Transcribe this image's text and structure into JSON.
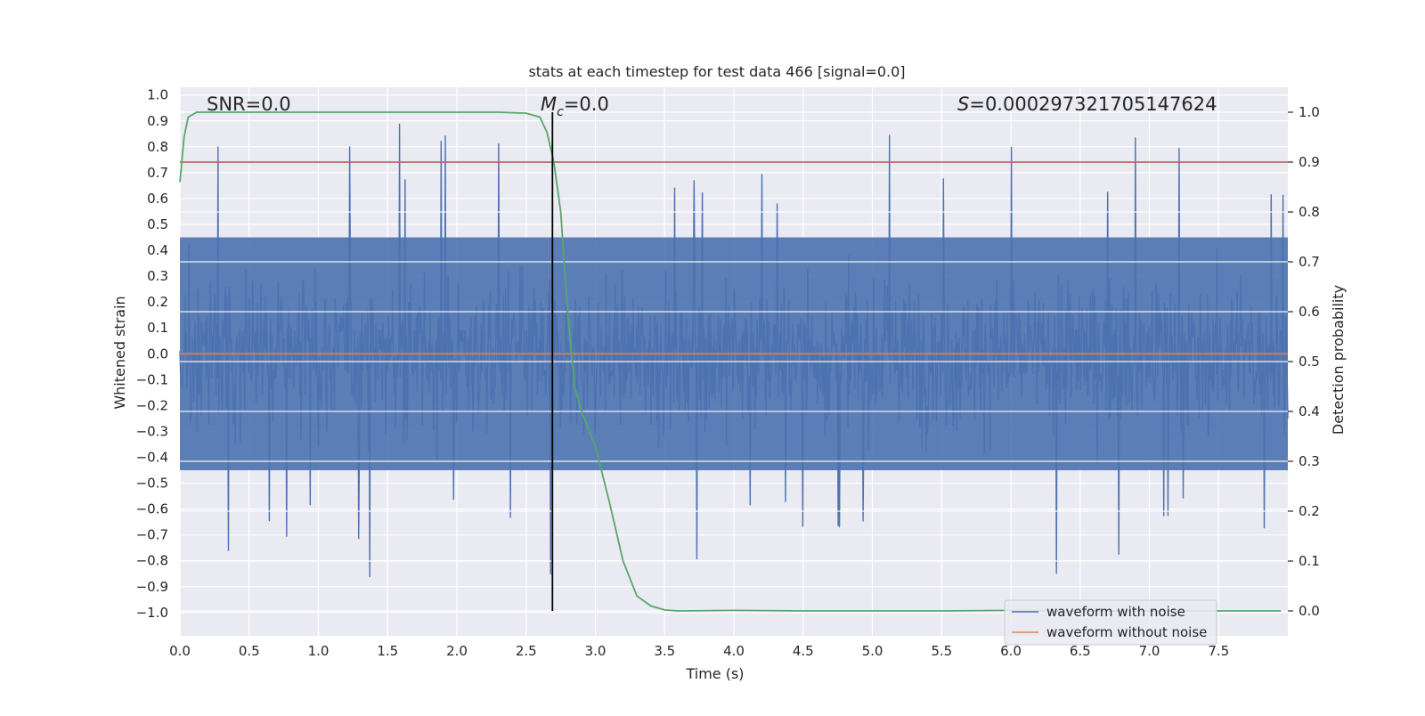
{
  "chart_data": {
    "type": "line",
    "title": "stats at each timestep for test data 466 [signal=0.0]",
    "xlabel": "Time (s)",
    "ylabel_left": "Whitened strain",
    "ylabel_right": "Detection probability",
    "xlim": [
      0.0,
      8.0
    ],
    "ylim_left": [
      -1.09,
      1.03
    ],
    "ylim_right": [
      -0.05,
      1.05
    ],
    "x_ticks": [
      0.0,
      0.5,
      1.0,
      1.5,
      2.0,
      2.5,
      3.0,
      3.5,
      4.0,
      4.5,
      5.0,
      5.5,
      6.0,
      6.5,
      7.0,
      7.5
    ],
    "x_tick_labels": [
      "0.0",
      "0.5",
      "1.0",
      "1.5",
      "2.0",
      "2.5",
      "3.0",
      "3.5",
      "4.0",
      "4.5",
      "5.0",
      "5.5",
      "6.0",
      "6.5",
      "7.0",
      "7.5"
    ],
    "y_left_ticks": [
      1.0,
      0.9,
      0.8,
      0.7,
      0.6,
      0.5,
      0.4,
      0.3,
      0.2,
      0.1,
      0.0,
      -0.1,
      -0.2,
      -0.3,
      -0.4,
      -0.5,
      -0.6,
      -0.7,
      -0.8,
      -0.9,
      -1.0
    ],
    "y_left_tick_labels": [
      "1.0",
      "0.9",
      "0.8",
      "0.7",
      "0.6",
      "0.5",
      "0.4",
      "0.3",
      "0.2",
      "0.1",
      "0.0",
      "−0.1",
      "−0.2",
      "−0.3",
      "−0.4",
      "−0.5",
      "−0.6",
      "−0.7",
      "−0.8",
      "−0.9",
      "−1.0"
    ],
    "y_right_ticks": [
      1.0,
      0.9,
      0.8,
      0.7,
      0.6,
      0.5,
      0.4,
      0.3,
      0.2,
      0.1,
      0.0
    ],
    "y_right_tick_labels": [
      "1.0",
      "0.9",
      "0.8",
      "0.7",
      "0.6",
      "0.5",
      "0.4",
      "0.3",
      "0.2",
      "0.1",
      "0.0"
    ],
    "grid": true,
    "legend_placement": "lower-right",
    "series": [
      {
        "name": "waveform with noise",
        "axis": "left",
        "color": "#4c72b0",
        "description_kind": "dense noise envelope",
        "typical_range": [
          -0.45,
          0.45
        ],
        "extreme_range": [
          -1.0,
          0.93
        ]
      },
      {
        "name": "waveform without noise",
        "axis": "left",
        "color": "#dd8452",
        "x": [
          0.0,
          8.0
        ],
        "y": [
          0.0,
          0.0
        ]
      },
      {
        "axis": "right",
        "color": "#55a868",
        "x": [
          0.0,
          0.03,
          0.06,
          0.12,
          0.5,
          1.0,
          1.5,
          2.0,
          2.3,
          2.5,
          2.6,
          2.65,
          2.7,
          2.75,
          2.8,
          2.85,
          2.9,
          3.0,
          3.1,
          3.2,
          3.3,
          3.4,
          3.5,
          3.6,
          4.0,
          4.5,
          5.0,
          5.5,
          6.0,
          6.5,
          7.0,
          7.5,
          7.95
        ],
        "y": [
          0.86,
          0.95,
          0.99,
          1.0,
          1.0,
          1.0,
          1.0,
          1.0,
          1.0,
          0.998,
          0.99,
          0.96,
          0.9,
          0.8,
          0.6,
          0.45,
          0.4,
          0.33,
          0.22,
          0.1,
          0.03,
          0.01,
          0.002,
          0.0,
          0.001,
          0.0,
          0.0,
          0.0,
          0.001,
          0.0,
          0.0,
          0.0,
          0.0
        ]
      }
    ],
    "reference_lines": [
      {
        "kind": "horizontal",
        "axis": "right",
        "value": 0.9,
        "color": "#c44e52"
      },
      {
        "kind": "vertical",
        "x": 2.69,
        "y_range_right": [
          0.0,
          1.0
        ],
        "color": "#000000"
      }
    ],
    "annotations": {
      "snr": "SNR=0.0",
      "mc_symbol": "M",
      "mc_sub": "c",
      "mc_value": "=0.0",
      "s_symbol": "S",
      "s_value": "=0.000297321705147624"
    },
    "legend": {
      "entries": [
        "waveform with noise",
        "waveform without noise"
      ]
    },
    "colors": {
      "axes_bg": "#eaeaf2",
      "grid": "#ffffff",
      "text": "#262626"
    }
  }
}
